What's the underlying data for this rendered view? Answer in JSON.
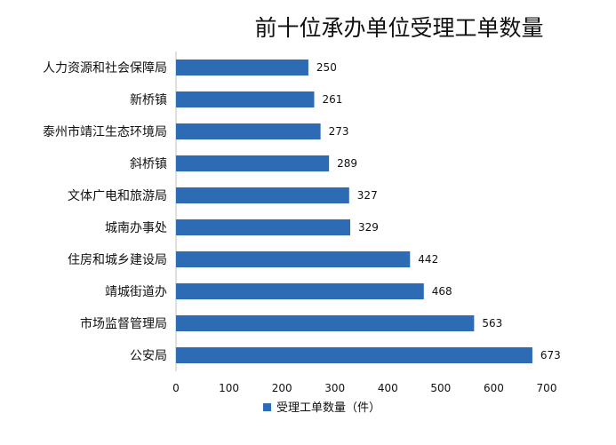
{
  "chart_data": {
    "type": "bar",
    "orientation": "horizontal",
    "title": "前十位承办单位受理工单数量",
    "categories": [
      "人力资源和社会保障局",
      "新桥镇",
      "泰州市靖江生态环境局",
      "斜桥镇",
      "文体广电和旅游局",
      "城南办事处",
      "住房和城乡建设局",
      "靖城街道办",
      "市场监督管理局",
      "公安局"
    ],
    "series": [
      {
        "name": "受理工单数量（件）",
        "values": [
          250,
          261,
          273,
          289,
          327,
          329,
          442,
          468,
          563,
          673
        ]
      }
    ],
    "xlim": [
      0,
      700
    ],
    "xticks": [
      0,
      100,
      200,
      300,
      400,
      500,
      600,
      700
    ],
    "grid": false,
    "data_labels": true,
    "legend_position": "bottom",
    "bar_color": "#2E6BB5"
  }
}
